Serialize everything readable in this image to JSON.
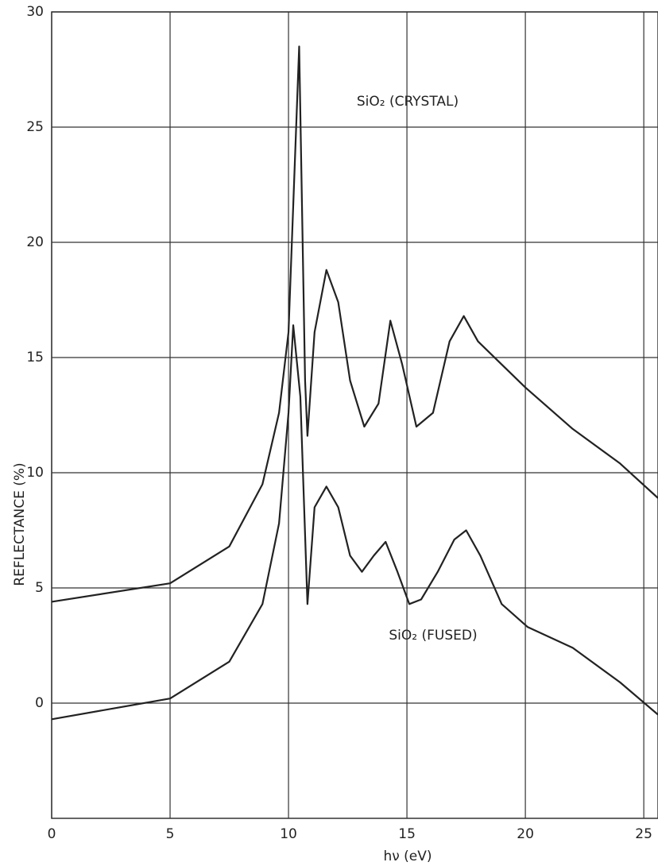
{
  "chart_data": {
    "type": "line",
    "x_label": "hν (eV)",
    "y_label": "REFLECTANCE (%)",
    "xlim": [
      0,
      25.6
    ],
    "ylim": [
      -5,
      30
    ],
    "xticks": [
      0,
      5,
      10,
      15,
      20,
      25
    ],
    "yticks": [
      0,
      5,
      10,
      15,
      20,
      25,
      30
    ],
    "grid": true,
    "series": [
      {
        "name": "SiO₂ (CRYSTAL)",
        "color": "#222222",
        "x": [
          0,
          5,
          7.5,
          8.9,
          9.6,
          10,
          10.45,
          10.7,
          10.8,
          11.1,
          11.6,
          12.1,
          12.6,
          13.2,
          13.8,
          14.3,
          14.8,
          15.4,
          16.1,
          16.8,
          17.4,
          18.0,
          20.0,
          22.0,
          24.0,
          25.6
        ],
        "values": [
          4.4,
          5.2,
          6.8,
          9.5,
          12.6,
          16.1,
          28.5,
          14,
          11.6,
          16.1,
          18.8,
          17.4,
          14,
          12.0,
          13,
          16.6,
          14.7,
          12.0,
          12.6,
          15.7,
          16.8,
          15.7,
          13.7,
          11.9,
          10.4,
          8.9
        ]
      },
      {
        "name": "SiO₂ (FUSED)",
        "color": "#222222",
        "x": [
          0,
          5,
          7.5,
          8.9,
          9.6,
          10,
          10.2,
          10.5,
          10.8,
          11.1,
          11.6,
          12.1,
          12.6,
          13.1,
          13.6,
          14.1,
          14.6,
          15.1,
          15.6,
          16.3,
          17.0,
          17.5,
          18.1,
          19.0,
          20.1,
          22,
          24,
          25.6
        ],
        "values": [
          -0.7,
          0.2,
          1.8,
          4.3,
          7.8,
          12.6,
          16.4,
          13.3,
          4.3,
          8.5,
          9.4,
          8.5,
          6.4,
          5.7,
          6.4,
          7.0,
          5.7,
          4.3,
          4.5,
          5.7,
          7.1,
          7.5,
          6.4,
          4.3,
          3.3,
          2.4,
          0.9,
          -0.5
        ]
      }
    ]
  }
}
